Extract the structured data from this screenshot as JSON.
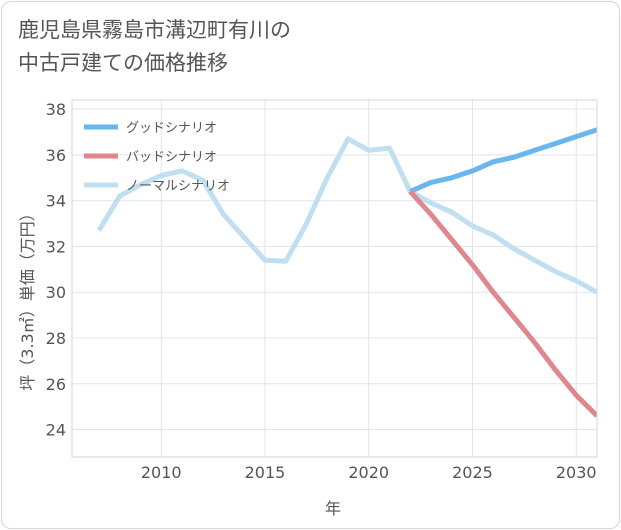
{
  "title_line1": "鹿児島県霧島市溝辺町有川の",
  "title_line2": "中古戸建ての価格推移",
  "chart_data": {
    "type": "line",
    "title": "鹿児島県霧島市溝辺町有川の中古戸建ての価格推移",
    "xlabel": "年",
    "ylabel": "坪（3.3㎡）単価（万円）",
    "xlim": [
      2005.7,
      2031
    ],
    "ylim": [
      22.8,
      38.4
    ],
    "xticks": [
      2010,
      2015,
      2020,
      2025,
      2030
    ],
    "yticks": [
      24,
      26,
      28,
      30,
      32,
      34,
      36,
      38
    ],
    "grid": true,
    "legend_position": "top-left",
    "series": [
      {
        "name": "グッドシナリオ",
        "color": "#6ab6ee",
        "x": [
          2022,
          2023,
          2024,
          2025,
          2026,
          2027,
          2028,
          2029,
          2030,
          2031
        ],
        "y": [
          34.4,
          34.8,
          35.0,
          35.3,
          35.7,
          35.9,
          36.2,
          36.5,
          36.8,
          37.1
        ]
      },
      {
        "name": "バッドシナリオ",
        "color": "#e0868e",
        "x": [
          2022,
          2023,
          2024,
          2025,
          2026,
          2027,
          2028,
          2029,
          2030,
          2031
        ],
        "y": [
          34.4,
          33.4,
          32.3,
          31.2,
          30.0,
          28.9,
          27.8,
          26.6,
          25.5,
          24.6
        ]
      },
      {
        "name": "ノーマルシナリオ",
        "color": "#c0dff0",
        "x": [
          2007,
          2008,
          2009,
          2010,
          2011,
          2012,
          2013,
          2014,
          2015,
          2016,
          2017,
          2018,
          2019,
          2020,
          2021,
          2022,
          2023,
          2024,
          2025,
          2026,
          2027,
          2028,
          2029,
          2030,
          2031
        ],
        "y": [
          32.7,
          34.2,
          34.7,
          35.1,
          35.3,
          34.9,
          33.4,
          32.4,
          31.4,
          31.35,
          33.0,
          35.0,
          36.7,
          36.2,
          36.3,
          34.4,
          33.9,
          33.5,
          32.9,
          32.5,
          31.9,
          31.4,
          30.9,
          30.5,
          30.0
        ]
      }
    ]
  }
}
